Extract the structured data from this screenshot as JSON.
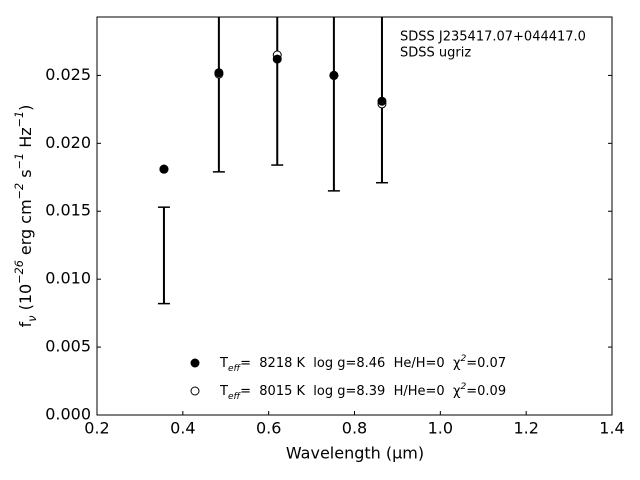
{
  "chart_data": {
    "type": "scatter",
    "xlabel": "Wavelength (μm)",
    "ylabel": "fν (10−26 erg cm−2 s−1 Hz−1)",
    "annotations": [
      "SDSS J235417.07+044417.0",
      "SDSS ugriz"
    ],
    "xlim": [
      0.2,
      1.4
    ],
    "ylim": [
      0,
      0.0293
    ],
    "xticks": [
      0.2,
      0.4,
      0.6,
      0.8,
      {
        "value": 1.0,
        "label": "1.0"
      },
      1.2,
      1.4
    ],
    "yticks": [
      {
        "value": 0,
        "label": "0.000"
      },
      {
        "value": 0.005,
        "label": "0.005"
      },
      {
        "value": 0.01,
        "label": "0.010"
      },
      {
        "value": 0.015,
        "label": "0.015"
      },
      {
        "value": 0.02,
        "label": "0.020"
      },
      {
        "value": 0.025,
        "label": "0.025"
      }
    ],
    "x": [
      0.356,
      0.484,
      0.62,
      0.752,
      0.864
    ],
    "observed": {
      "values": [
        0.01175,
        0.0252,
        0.0262,
        0.025,
        0.0245
      ],
      "errors": [
        0.00355,
        0.0073,
        0.0078,
        0.0085,
        0.0074
      ],
      "color": "#000000"
    },
    "series": [
      {
        "name": "Teff=  8218 K  log g=8.46  He/H=0  χ2=0.07",
        "marker": "filled",
        "color": "#000000",
        "values": [
          0.0181,
          0.0252,
          0.0262,
          0.025,
          0.0231
        ]
      },
      {
        "name": "Teff=  8015 K  log g=8.39  H/He=0  χ2=0.09",
        "marker": "open",
        "color": "#000000",
        "values": [
          0.0181,
          0.0251,
          0.0265,
          0.025,
          0.0229
        ]
      }
    ]
  }
}
